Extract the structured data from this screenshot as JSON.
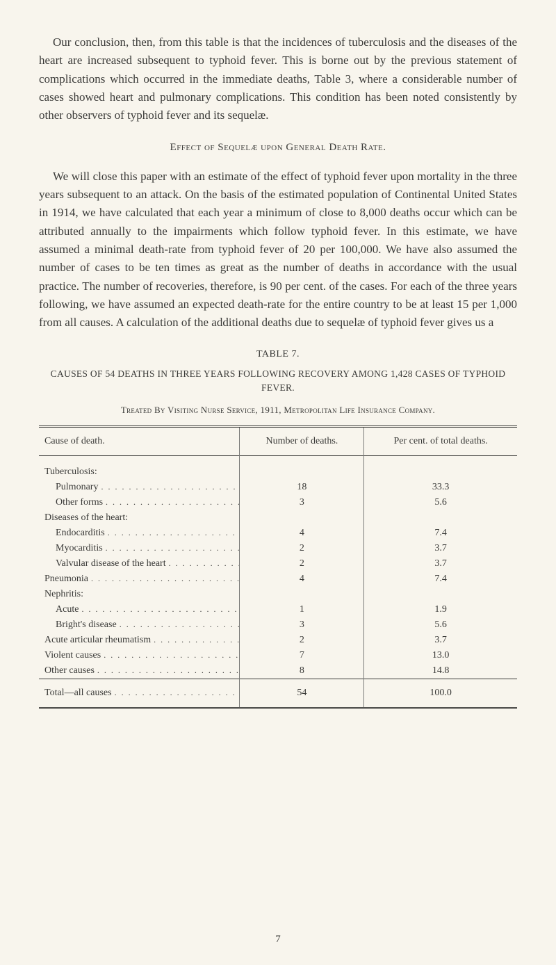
{
  "paragraphs": {
    "p1": "Our conclusion, then, from this table is that the incidences of tuberculosis and the diseases of the heart are increased subsequent to typhoid fever. This is borne out by the previous statement of complications which occurred in the immediate deaths, Table 3, where a considerable number of cases showed heart and pulmonary complications. This condition has been noted consistently by other observers of typhoid fever and its sequelæ.",
    "heading": "Effect of Sequelæ upon General Death Rate.",
    "p2": "We will close this paper with an estimate of the effect of typhoid fever upon mortality in the three years subsequent to an attack. On the basis of the estimated population of Continental United States in 1914, we have calculated that each year a minimum of close to 8,000 deaths occur which can be attributed annually to the impairments which follow typhoid fever. In this estimate, we have assumed a minimal death-rate from typhoid fever of 20 per 100,000. We have also assumed the number of cases to be ten times as great as the number of deaths in accordance with the usual practice. The number of recoveries, therefore, is 90 per cent. of the cases. For each of the three years following, we have assumed an expected death-rate for the entire country to be at least 15 per 1,000 from all causes. A calculation of the additional deaths due to sequelæ of typhoid fever gives us a"
  },
  "table": {
    "caption": "TABLE 7.",
    "title1": "CAUSES OF 54 DEATHS IN THREE YEARS FOLLOWING RECOVERY AMONG 1,428 CASES OF TYPHOID FEVER.",
    "title2": "Treated By Visiting Nurse Service, 1911, Metropolitan Life Insurance Company.",
    "headers": {
      "cause": "Cause of death.",
      "number": "Number of deaths.",
      "percent": "Per cent. of total deaths."
    },
    "rows": [
      {
        "label": "Tuberculosis:",
        "number": "",
        "percent": "",
        "indent": false,
        "noDots": true
      },
      {
        "label": "Pulmonary",
        "number": "18",
        "percent": "33.3",
        "indent": true
      },
      {
        "label": "Other forms",
        "number": "3",
        "percent": "5.6",
        "indent": true
      },
      {
        "label": "Diseases of the heart:",
        "number": "",
        "percent": "",
        "indent": false,
        "noDots": true
      },
      {
        "label": "Endocarditis",
        "number": "4",
        "percent": "7.4",
        "indent": true
      },
      {
        "label": "Myocarditis",
        "number": "2",
        "percent": "3.7",
        "indent": true
      },
      {
        "label": "Valvular disease of the heart",
        "number": "2",
        "percent": "3.7",
        "indent": true
      },
      {
        "label": "Pneumonia",
        "number": "4",
        "percent": "7.4",
        "indent": false
      },
      {
        "label": "Nephritis:",
        "number": "",
        "percent": "",
        "indent": false,
        "noDots": true
      },
      {
        "label": "Acute",
        "number": "1",
        "percent": "1.9",
        "indent": true
      },
      {
        "label": "Bright's disease",
        "number": "3",
        "percent": "5.6",
        "indent": true
      },
      {
        "label": "Acute articular rheumatism",
        "number": "2",
        "percent": "3.7",
        "indent": false
      },
      {
        "label": "Violent causes",
        "number": "7",
        "percent": "13.0",
        "indent": false
      },
      {
        "label": "Other causes",
        "number": "8",
        "percent": "14.8",
        "indent": false
      }
    ],
    "total": {
      "label": "Total—all causes",
      "number": "54",
      "percent": "100.0"
    }
  },
  "pageNumber": "7",
  "colors": {
    "background": "#f8f5ed",
    "text": "#3a3a38",
    "rule": "#3a3a38",
    "sepLight": "#7a7a78"
  },
  "fonts": {
    "body": 17,
    "heading": 15,
    "tableCaption": 14,
    "tableTitle": 13.5,
    "tableBody": 14
  }
}
